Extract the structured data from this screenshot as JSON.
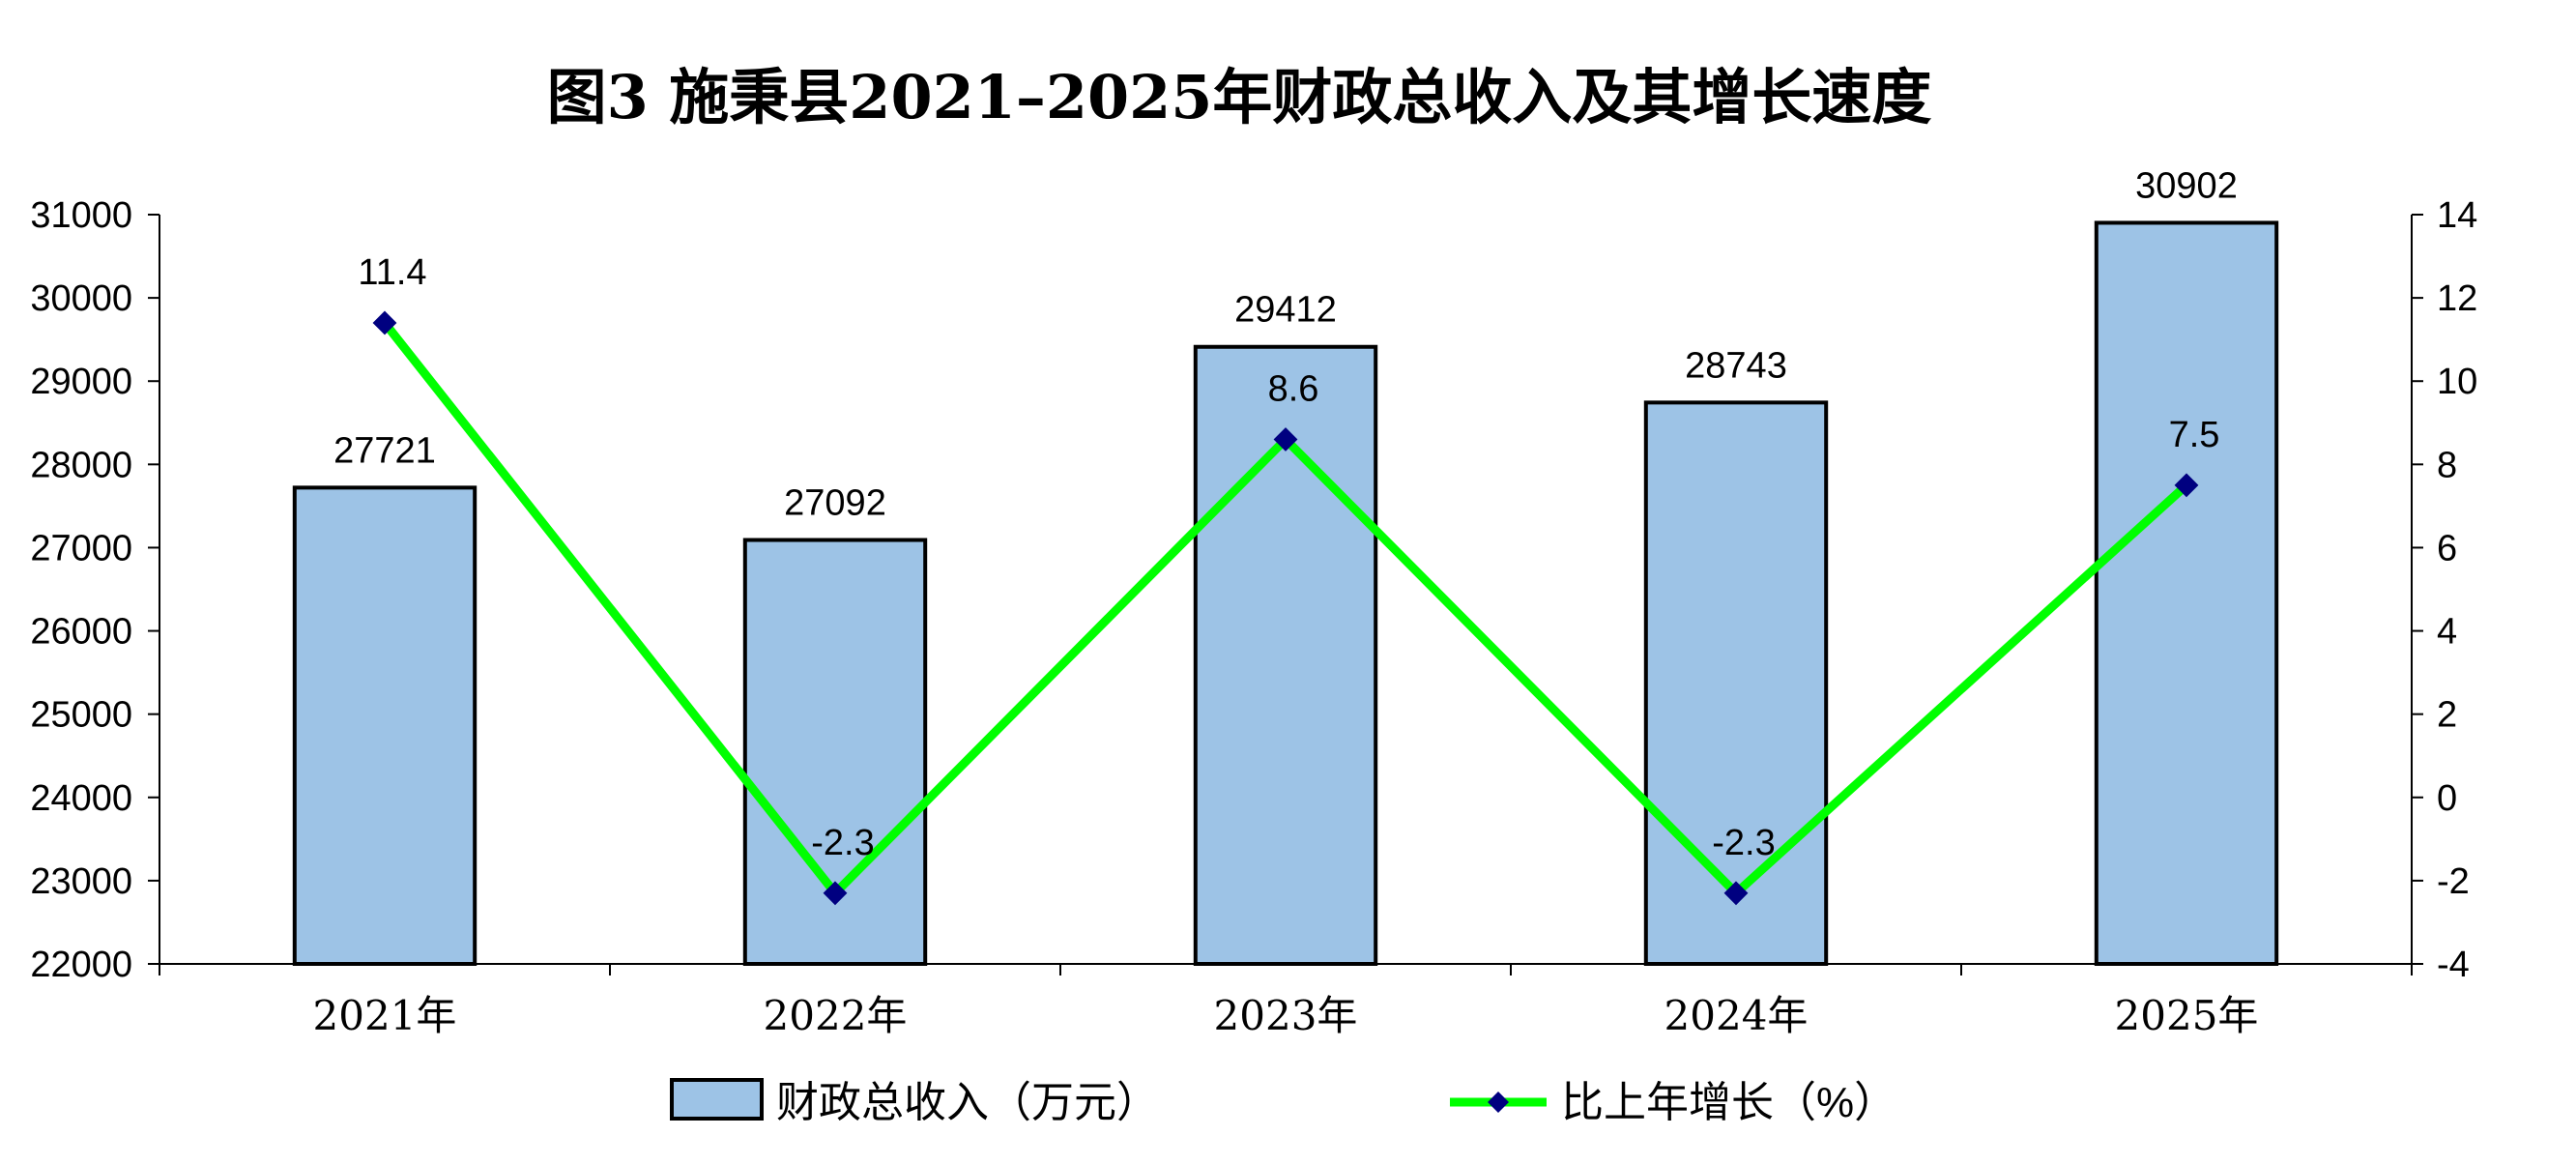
{
  "chart_data": {
    "type": "bar",
    "title": "图3  施秉县2021–2025年财政总收入及其增长速度",
    "categories": [
      "2021年",
      "2022年",
      "2023年",
      "2024年",
      "2025年"
    ],
    "series": [
      {
        "name": "财政总收入（万元）",
        "type": "bar",
        "axis": "left",
        "color": "#9dc3e6",
        "values": [
          27721,
          27092,
          29412,
          28743,
          30902
        ]
      },
      {
        "name": "比上年增长（%）",
        "type": "line",
        "axis": "right",
        "color": "#00ff00",
        "marker_color": "#000080",
        "values": [
          11.4,
          -2.3,
          8.6,
          -2.3,
          7.5
        ]
      }
    ],
    "y_left": {
      "min": 22000,
      "max": 31000,
      "step": 1000
    },
    "y_right": {
      "min": -4,
      "max": 14,
      "step": 2
    },
    "grid": false,
    "legend_position": "bottom"
  }
}
